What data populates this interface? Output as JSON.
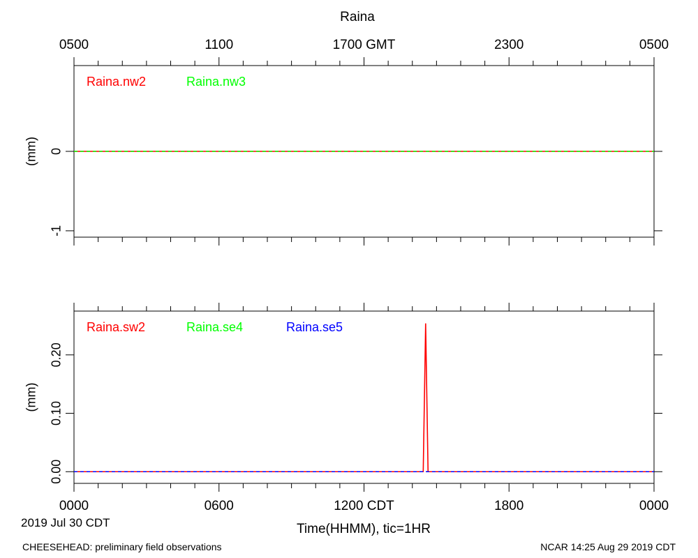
{
  "figure": {
    "title": "Raina",
    "date_label": "2019 Jul 30 CDT",
    "xlabel": "Time(HHMM), tic=1HR",
    "footer_left": "CHEESEHEAD: preliminary field observations",
    "footer_right": "NCAR 14:25 Aug 29 2019 CDT",
    "top_axis_labels": [
      "0500",
      "1100",
      "1700 GMT",
      "2300",
      "0500"
    ],
    "bottom_axis_labels": [
      "0000",
      "0600",
      "1200 CDT",
      "1800",
      "0000"
    ]
  },
  "chart_data": [
    {
      "type": "line",
      "ylabel": "(mm)",
      "xlim": [
        0,
        24
      ],
      "ylim": [
        -1.08,
        1.08
      ],
      "yticks": [
        -1,
        0
      ],
      "ytick_labels": [
        "-1",
        "0"
      ],
      "series": [
        {
          "name": "Raina.nw2",
          "color": "#ff0000",
          "dash": false,
          "x": [
            0,
            24
          ],
          "y": [
            0,
            0
          ]
        },
        {
          "name": "Raina.nw3",
          "color": "#00ff00",
          "dash": true,
          "x": [
            0,
            24
          ],
          "y": [
            0,
            0
          ]
        }
      ]
    },
    {
      "type": "line",
      "ylabel": "(mm)",
      "xlim": [
        0,
        24
      ],
      "ylim": [
        -0.02,
        0.275
      ],
      "yticks": [
        0,
        0.1,
        0.2
      ],
      "ytick_labels": [
        "0.00",
        "0.10",
        "0.20"
      ],
      "series": [
        {
          "name": "Raina.sw2",
          "color": "#ff0000",
          "dash": false,
          "x": [
            0,
            14.45,
            14.55,
            14.65,
            24
          ],
          "y": [
            0,
            0,
            0.254,
            0,
            0
          ]
        },
        {
          "name": "Raina.se4",
          "color": "#00ff00",
          "dash": true,
          "x": [
            0,
            24
          ],
          "y": [
            0,
            0
          ]
        },
        {
          "name": "Raina.se5",
          "color": "#0000ff",
          "dash": true,
          "x": [
            0,
            24
          ],
          "y": [
            0,
            0
          ]
        }
      ]
    }
  ]
}
